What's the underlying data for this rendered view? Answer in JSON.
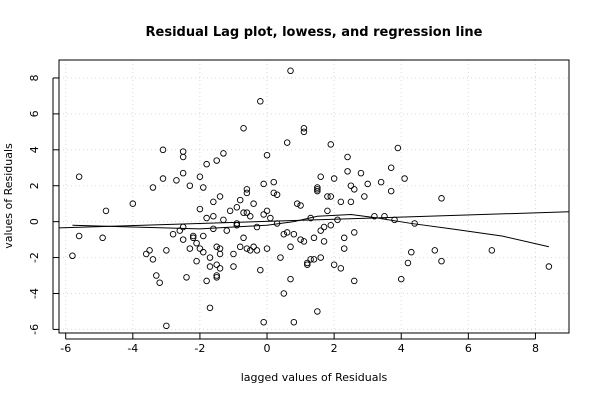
{
  "chart_data": {
    "type": "scatter",
    "title": "Residual Lag plot, lowess, and regression line",
    "xlabel": "lagged values of Residuals",
    "ylabel": "values of Residuals",
    "xlim": [
      -6.2,
      9.0
    ],
    "ylim": [
      -6.2,
      9.0
    ],
    "xticks": [
      "-6",
      "-4",
      "-2",
      "0",
      "2",
      "4",
      "6",
      "8"
    ],
    "yticks": [
      "-6",
      "-4",
      "-2",
      "0",
      "2",
      "4",
      "6",
      "8"
    ],
    "grid": true,
    "points": [
      [
        -5.8,
        -1.9
      ],
      [
        -5.6,
        2.5
      ],
      [
        -5.6,
        -0.8
      ],
      [
        -4.9,
        -0.9
      ],
      [
        -4.8,
        0.6
      ],
      [
        -4.0,
        1.0
      ],
      [
        -3.6,
        -1.8
      ],
      [
        -3.5,
        -1.6
      ],
      [
        -3.4,
        -2.1
      ],
      [
        -3.4,
        1.9
      ],
      [
        -3.3,
        -3.0
      ],
      [
        -3.2,
        -3.4
      ],
      [
        -3.1,
        2.4
      ],
      [
        -3.1,
        4.0
      ],
      [
        -3.0,
        -5.8
      ],
      [
        -3.0,
        -1.6
      ],
      [
        -2.8,
        -0.7
      ],
      [
        -2.7,
        2.3
      ],
      [
        -2.6,
        -0.5
      ],
      [
        -2.5,
        3.9
      ],
      [
        -2.5,
        3.6
      ],
      [
        -2.5,
        2.7
      ],
      [
        -2.5,
        -0.3
      ],
      [
        -2.5,
        -1.0
      ],
      [
        -2.4,
        -3.1
      ],
      [
        -2.3,
        -1.5
      ],
      [
        -2.3,
        2.0
      ],
      [
        -2.2,
        -0.8
      ],
      [
        -2.2,
        -0.9
      ],
      [
        -2.1,
        -1.2
      ],
      [
        -2.1,
        -2.2
      ],
      [
        -2.0,
        2.5
      ],
      [
        -2.0,
        0.7
      ],
      [
        -2.0,
        -1.5
      ],
      [
        -1.9,
        -1.7
      ],
      [
        -1.9,
        1.9
      ],
      [
        -1.9,
        -0.8
      ],
      [
        -1.8,
        -3.3
      ],
      [
        -1.8,
        3.2
      ],
      [
        -1.8,
        0.2
      ],
      [
        -1.7,
        -2.0
      ],
      [
        -1.7,
        -2.5
      ],
      [
        -1.7,
        -4.8
      ],
      [
        -1.6,
        1.1
      ],
      [
        -1.6,
        -0.4
      ],
      [
        -1.6,
        0.3
      ],
      [
        -1.5,
        3.4
      ],
      [
        -1.5,
        -1.4
      ],
      [
        -1.5,
        -2.4
      ],
      [
        -1.5,
        -3.0
      ],
      [
        -1.5,
        -3.1
      ],
      [
        -1.4,
        -1.5
      ],
      [
        -1.4,
        -1.8
      ],
      [
        -1.4,
        -2.6
      ],
      [
        -1.4,
        1.4
      ],
      [
        -1.3,
        0.1
      ],
      [
        -1.3,
        3.8
      ],
      [
        -1.2,
        -0.5
      ],
      [
        -1.1,
        0.6
      ],
      [
        -1.0,
        -1.8
      ],
      [
        -1.0,
        -2.5
      ],
      [
        -0.9,
        -0.1
      ],
      [
        -0.9,
        0.8
      ],
      [
        -0.9,
        -0.2
      ],
      [
        -0.8,
        1.2
      ],
      [
        -0.8,
        -1.4
      ],
      [
        -0.7,
        5.2
      ],
      [
        -0.7,
        0.5
      ],
      [
        -0.7,
        -0.9
      ],
      [
        -0.6,
        -1.5
      ],
      [
        -0.6,
        1.6
      ],
      [
        -0.6,
        1.8
      ],
      [
        -0.6,
        0.5
      ],
      [
        -0.5,
        0.3
      ],
      [
        -0.5,
        -1.6
      ],
      [
        -0.4,
        1.0
      ],
      [
        -0.4,
        -1.4
      ],
      [
        -0.3,
        -1.6
      ],
      [
        -0.3,
        -0.3
      ],
      [
        -0.2,
        -2.7
      ],
      [
        -0.2,
        6.7
      ],
      [
        -0.1,
        0.4
      ],
      [
        -0.1,
        2.1
      ],
      [
        -0.1,
        -5.6
      ],
      [
        0.0,
        -1.5
      ],
      [
        0.0,
        0.6
      ],
      [
        0.0,
        3.7
      ],
      [
        0.1,
        0.2
      ],
      [
        0.2,
        1.6
      ],
      [
        0.2,
        2.2
      ],
      [
        0.3,
        1.5
      ],
      [
        0.3,
        -0.1
      ],
      [
        0.4,
        -2.0
      ],
      [
        0.5,
        -4.0
      ],
      [
        0.5,
        -0.7
      ],
      [
        0.6,
        -0.6
      ],
      [
        0.6,
        4.4
      ],
      [
        0.7,
        8.4
      ],
      [
        0.7,
        -3.2
      ],
      [
        0.7,
        -1.4
      ],
      [
        0.8,
        -5.6
      ],
      [
        0.8,
        -0.7
      ],
      [
        0.9,
        1.0
      ],
      [
        1.0,
        0.9
      ],
      [
        1.0,
        -1.0
      ],
      [
        1.1,
        5.2
      ],
      [
        1.1,
        5.0
      ],
      [
        1.1,
        -1.1
      ],
      [
        1.2,
        -2.3
      ],
      [
        1.2,
        -2.4
      ],
      [
        1.3,
        0.2
      ],
      [
        1.3,
        -2.1
      ],
      [
        1.4,
        -0.9
      ],
      [
        1.4,
        -2.1
      ],
      [
        1.5,
        1.7
      ],
      [
        1.5,
        1.9
      ],
      [
        1.5,
        1.8
      ],
      [
        1.5,
        -5.0
      ],
      [
        1.6,
        2.5
      ],
      [
        1.6,
        -2.0
      ],
      [
        1.6,
        -0.5
      ],
      [
        1.7,
        -0.3
      ],
      [
        1.7,
        -1.1
      ],
      [
        1.8,
        0.6
      ],
      [
        1.8,
        1.4
      ],
      [
        1.9,
        -0.2
      ],
      [
        1.9,
        1.4
      ],
      [
        1.9,
        4.3
      ],
      [
        2.0,
        -2.4
      ],
      [
        2.0,
        2.4
      ],
      [
        2.1,
        0.1
      ],
      [
        2.2,
        1.1
      ],
      [
        2.2,
        -2.6
      ],
      [
        2.3,
        -1.5
      ],
      [
        2.3,
        -0.9
      ],
      [
        2.4,
        2.8
      ],
      [
        2.4,
        3.6
      ],
      [
        2.5,
        1.1
      ],
      [
        2.5,
        2.0
      ],
      [
        2.6,
        -3.3
      ],
      [
        2.6,
        -0.6
      ],
      [
        2.6,
        1.8
      ],
      [
        2.8,
        2.7
      ],
      [
        2.9,
        1.4
      ],
      [
        3.0,
        2.1
      ],
      [
        3.2,
        0.3
      ],
      [
        3.4,
        2.2
      ],
      [
        3.5,
        0.3
      ],
      [
        3.7,
        1.7
      ],
      [
        3.7,
        3.0
      ],
      [
        3.8,
        0.1
      ],
      [
        3.9,
        4.1
      ],
      [
        4.0,
        -3.2
      ],
      [
        4.1,
        2.4
      ],
      [
        4.2,
        -2.3
      ],
      [
        4.3,
        -1.7
      ],
      [
        4.4,
        -0.1
      ],
      [
        5.0,
        -1.6
      ],
      [
        5.2,
        -2.2
      ],
      [
        5.2,
        1.3
      ],
      [
        6.7,
        -1.6
      ],
      [
        8.4,
        -2.5
      ]
    ],
    "lowess": [
      [
        -5.8,
        -0.2
      ],
      [
        -4,
        -0.3
      ],
      [
        -2,
        -0.4
      ],
      [
        -1,
        -0.3
      ],
      [
        0,
        -0.2
      ],
      [
        0.8,
        0.0
      ],
      [
        1.5,
        0.3
      ],
      [
        2.5,
        0.4
      ],
      [
        3.3,
        0.2
      ],
      [
        4.3,
        -0.1
      ],
      [
        5.5,
        -0.4
      ],
      [
        7,
        -0.8
      ],
      [
        8.4,
        -1.4
      ]
    ],
    "regression": [
      [
        -6.2,
        -0.35
      ],
      [
        9.0,
        0.55
      ]
    ]
  }
}
